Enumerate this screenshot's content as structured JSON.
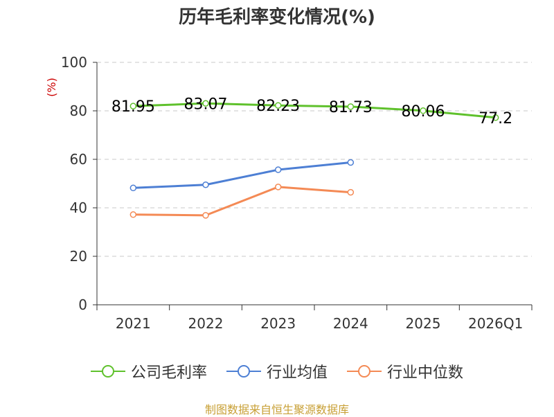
{
  "chart_data": {
    "type": "line",
    "title": "历年毛利率变化情况(%)",
    "ylabel": "(%)",
    "xlabel": "",
    "categories": [
      "2021",
      "2022",
      "2023",
      "2024",
      "2025",
      "2026Q1"
    ],
    "ylim": [
      0,
      100
    ],
    "yticks": [
      0,
      20,
      40,
      60,
      80,
      100
    ],
    "grid": "horizontal-dashed",
    "legend_position": "bottom",
    "series": [
      {
        "name": "公司毛利率",
        "color": "#5fc12c",
        "values": [
          81.95,
          83.07,
          82.23,
          81.73,
          80.06,
          77.2
        ],
        "labels": [
          "81.95",
          "83.07",
          "82.23",
          "81.73",
          "80.06",
          "77.2"
        ]
      },
      {
        "name": "行业均值",
        "color": "#4d7fd4",
        "values": [
          48.2,
          49.5,
          55.7,
          58.7,
          null,
          null
        ]
      },
      {
        "name": "行业中位数",
        "color": "#f48a55",
        "values": [
          37.2,
          36.9,
          48.6,
          46.4,
          null,
          null
        ]
      }
    ]
  },
  "source": "制图数据来自恒生聚源数据库"
}
